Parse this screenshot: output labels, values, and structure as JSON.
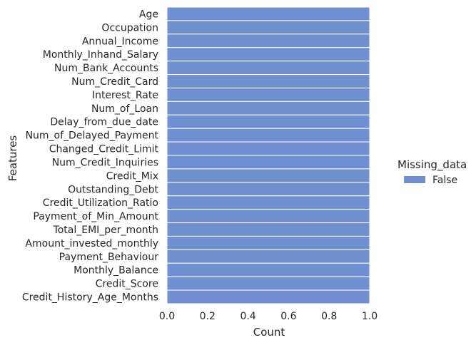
{
  "chart_data": {
    "type": "bar",
    "orientation": "horizontal",
    "xlabel": "Count",
    "ylabel": "Features",
    "xlim": [
      0,
      1
    ],
    "xticks": [
      "0.0",
      "0.2",
      "0.4",
      "0.6",
      "0.8",
      "1.0"
    ],
    "grid": true,
    "legend_position": "right",
    "categories": [
      "Age",
      "Occupation",
      "Annual_Income",
      "Monthly_Inhand_Salary",
      "Num_Bank_Accounts",
      "Num_Credit_Card",
      "Interest_Rate",
      "Num_of_Loan",
      "Delay_from_due_date",
      "Num_of_Delayed_Payment",
      "Changed_Credit_Limit",
      "Num_Credit_Inquiries",
      "Credit_Mix",
      "Outstanding_Debt",
      "Credit_Utilization_Ratio",
      "Payment_of_Min_Amount",
      "Total_EMI_per_month",
      "Amount_invested_monthly",
      "Payment_Behaviour",
      "Monthly_Balance",
      "Credit_Score",
      "Credit_History_Age_Months"
    ],
    "series": [
      {
        "name": "False",
        "color": "#6f8fcf",
        "values": [
          1,
          1,
          1,
          1,
          1,
          1,
          1,
          1,
          1,
          1,
          1,
          1,
          1,
          1,
          1,
          1,
          1,
          1,
          1,
          1,
          1,
          1
        ]
      }
    ],
    "legend": {
      "title": "Missing_data",
      "entries": [
        "False"
      ]
    },
    "colors": {
      "plot_bg": "#eaeaf2",
      "grid": "#ffffff",
      "bar": "#6f8fcf",
      "bar_edge": "#ffffff"
    }
  }
}
